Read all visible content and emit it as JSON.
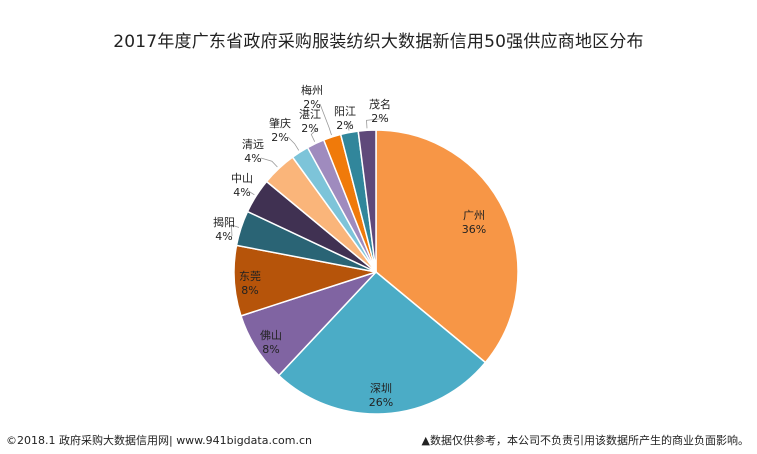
{
  "chart_data": {
    "type": "pie",
    "title": "2017年度广东省政府采购服装纺织大数据新信用50强供应商地区分布",
    "slices": [
      {
        "label": "广州",
        "value": 36,
        "pct_label": "36%",
        "color": "#F79646"
      },
      {
        "label": "深圳",
        "value": 26,
        "pct_label": "26%",
        "color": "#4BACC6"
      },
      {
        "label": "佛山",
        "value": 8,
        "pct_label": "8%",
        "color": "#8064A2"
      },
      {
        "label": "东莞",
        "value": 8,
        "pct_label": "8%",
        "color": "#B6540A"
      },
      {
        "label": "揭阳",
        "value": 4,
        "pct_label": "4%",
        "color": "#2A6475"
      },
      {
        "label": "中山",
        "value": 4,
        "pct_label": "4%",
        "color": "#403152"
      },
      {
        "label": "清远",
        "value": 4,
        "pct_label": "4%",
        "color": "#FAB57A"
      },
      {
        "label": "肇庆",
        "value": 2,
        "pct_label": "2%",
        "color": "#7DC4D9"
      },
      {
        "label": "湛江",
        "value": 2,
        "pct_label": "2%",
        "color": "#9F8BBE"
      },
      {
        "label": "梅州",
        "value": 2,
        "pct_label": "2%",
        "color": "#F07A0A"
      },
      {
        "label": "阳江",
        "value": 2,
        "pct_label": "2%",
        "color": "#31869B"
      },
      {
        "label": "茂名",
        "value": 2,
        "pct_label": "2%",
        "color": "#5F497A"
      }
    ],
    "legend": "none"
  },
  "footer": {
    "left": "©2018.1 政府采购大数据信用网| www.941bigdata.com.cn",
    "right": "▲数据仅供参考，本公司不负责引用该数据所产生的商业负面影响。"
  }
}
